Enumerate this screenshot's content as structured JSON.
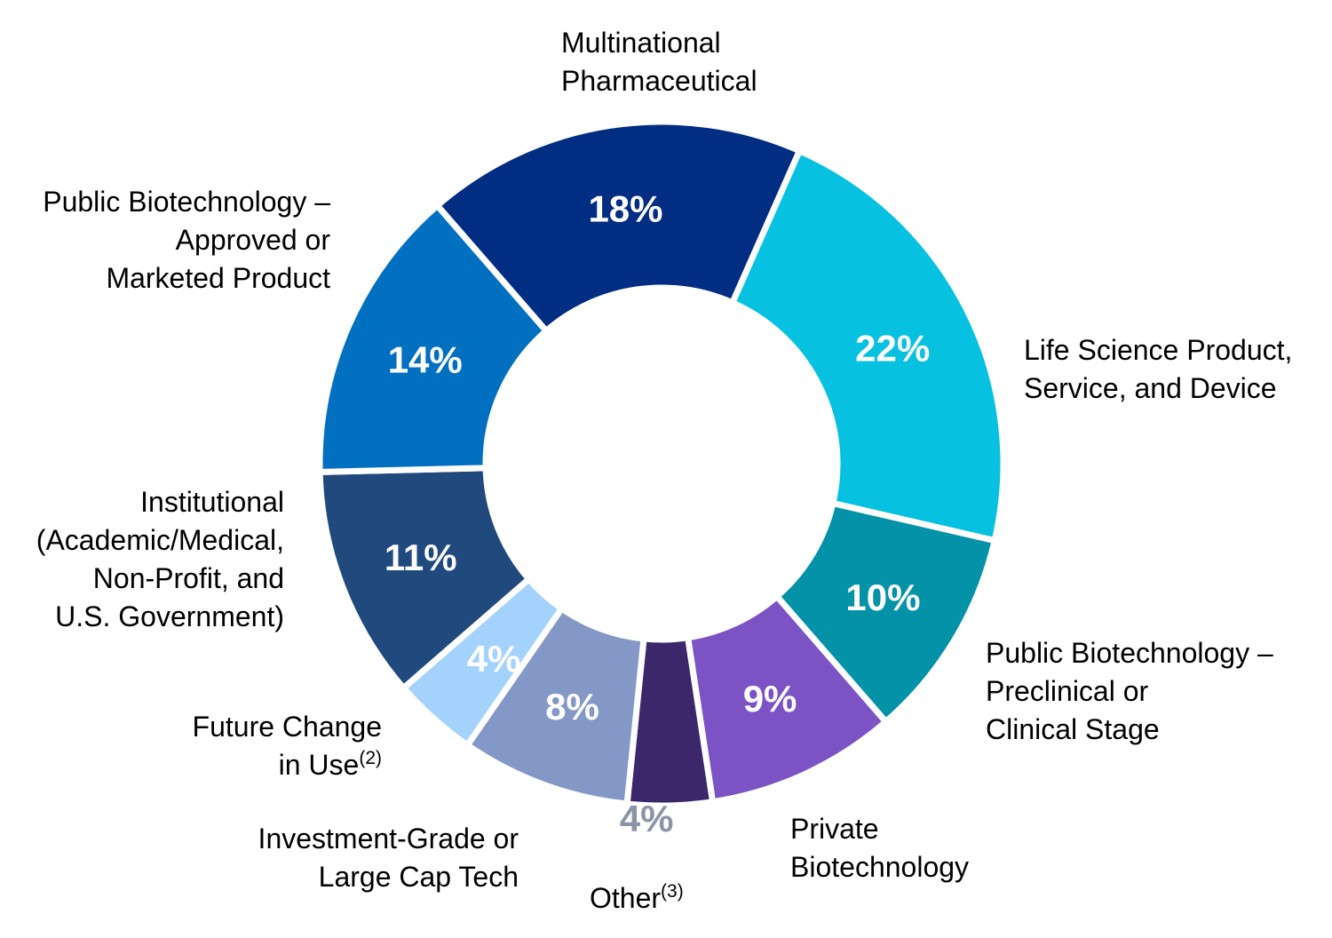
{
  "chart_data": {
    "type": "pie",
    "donut": true,
    "title": "",
    "start_angle_deg": -41,
    "direction": "clockwise",
    "slices": [
      {
        "key": "multinational",
        "name_lines": [
          "Multinational",
          "Pharmaceutical"
        ],
        "superscript": "",
        "value": 18,
        "label": "18%",
        "color": "#012D83",
        "label_color": "#FFFFFF"
      },
      {
        "key": "life_science",
        "name_lines": [
          "Life Science Product,",
          "Service, and Device"
        ],
        "superscript": "",
        "value": 22,
        "label": "22%",
        "color": "#06C1E0",
        "label_color": "#FFFFFF"
      },
      {
        "key": "public_bio_preclinical",
        "name_lines": [
          "Public Biotechnology –",
          "Preclinical or",
          "Clinical Stage"
        ],
        "superscript": "",
        "value": 10,
        "label": "10%",
        "color": "#0492A8",
        "label_color": "#FFFFFF"
      },
      {
        "key": "private_bio",
        "name_lines": [
          "Private",
          "Biotechnology"
        ],
        "superscript": "",
        "value": 9,
        "label": "9%",
        "color": "#7C53C4",
        "label_color": "#FFFFFF"
      },
      {
        "key": "other",
        "name_lines": [
          "Other"
        ],
        "superscript": "(3)",
        "value": 4,
        "label": "4%",
        "color": "#3B276A",
        "label_color": "#8A94A6"
      },
      {
        "key": "investment_grade",
        "name_lines": [
          "Investment-Grade or",
          "Large Cap Tech"
        ],
        "superscript": "",
        "value": 8,
        "label": "8%",
        "color": "#8398C6",
        "label_color": "#FFFFFF"
      },
      {
        "key": "future_change",
        "name_lines": [
          "Future Change",
          "in Use"
        ],
        "superscript": "(2)",
        "value": 4,
        "label": "4%",
        "color": "#A3D3FD",
        "label_color": "#FFFFFF"
      },
      {
        "key": "institutional",
        "name_lines": [
          "Institutional",
          "(Academic/Medical,",
          "Non-Profit, and",
          "U.S. Government)"
        ],
        "superscript": "",
        "value": 11,
        "label": "11%",
        "color": "#20497D",
        "label_color": "#FFFFFF"
      },
      {
        "key": "public_bio_approved",
        "name_lines": [
          "Public Biotechnology –",
          "Approved or",
          "Marketed Product"
        ],
        "superscript": "",
        "value": 14,
        "label": "14%",
        "color": "#0170C1",
        "label_color": "#FFFFFF"
      }
    ]
  }
}
